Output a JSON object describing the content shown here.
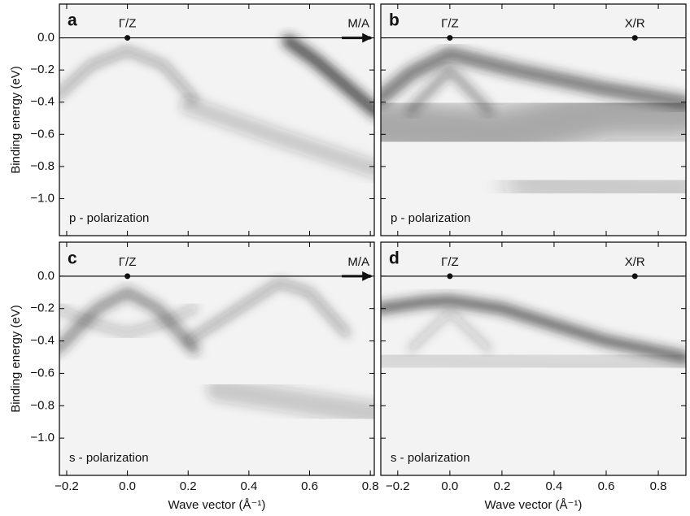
{
  "chart_data": [
    {
      "type": "heatmap",
      "panel": "a",
      "xlim": [
        -0.224,
        0.813
      ],
      "ylim": [
        -1.23,
        0.21
      ],
      "xticks": [
        -0.2,
        0,
        0.2,
        0.4,
        0.6,
        0.8
      ],
      "yticks": [
        {
          "value": 0,
          "label": "0.0"
        },
        {
          "value": -0.2,
          "label": "−0.2"
        },
        {
          "value": -0.4,
          "label": "−0.4"
        },
        {
          "value": -0.6,
          "label": "−0.6"
        },
        {
          "value": -0.8,
          "label": "−0.8"
        },
        {
          "value": -1.0,
          "label": "−1.0"
        }
      ],
      "ylabel": "Binding energy (eV)",
      "points": [
        {
          "label": "Γ/Z",
          "x": 0,
          "y": 0
        }
      ],
      "arrow_label": "M/A",
      "annotation": "p - polarization"
    },
    {
      "type": "heatmap",
      "panel": "b",
      "xlim": [
        -0.265,
        0.906
      ],
      "ylim": [
        -1.23,
        0.21
      ],
      "xticks": [
        -0.2,
        0,
        0.2,
        0.4,
        0.6,
        0.8
      ],
      "yticks": [
        0,
        -0.2,
        -0.4,
        -0.6,
        -0.8,
        -1.0
      ],
      "points": [
        {
          "label": "Γ/Z",
          "x": 0,
          "y": 0
        },
        {
          "label": "X/R",
          "x": 0.71,
          "y": 0
        }
      ],
      "annotation": "p - polarization"
    },
    {
      "type": "heatmap",
      "panel": "c",
      "xlim": [
        -0.224,
        0.813
      ],
      "ylim": [
        -1.23,
        0.21
      ],
      "xticks": [
        {
          "value": -0.2,
          "label": "−0.2"
        },
        {
          "value": 0,
          "label": "0.0"
        },
        0.2,
        0.4,
        0.6,
        0.8
      ],
      "yticks": [
        {
          "value": 0,
          "label": "0.0"
        },
        {
          "value": -0.2,
          "label": "−0.2"
        },
        {
          "value": -0.4,
          "label": "−0.4"
        },
        {
          "value": -0.6,
          "label": "−0.6"
        },
        {
          "value": -0.8,
          "label": "−0.8"
        },
        {
          "value": -1.0,
          "label": "−1.0"
        }
      ],
      "xlabel": "Wave vector (Å⁻¹)",
      "ylabel": "Binding energy (eV)",
      "points": [
        {
          "label": "Γ/Z",
          "x": 0,
          "y": 0
        }
      ],
      "arrow_label": "M/A",
      "annotation": "s - polarization"
    },
    {
      "type": "heatmap",
      "panel": "d",
      "xlim": [
        -0.265,
        0.906
      ],
      "ylim": [
        -1.23,
        0.21
      ],
      "xticks": [
        {
          "value": -0.2,
          "label": "−0.2"
        },
        {
          "value": 0,
          "label": "0.0"
        },
        0.2,
        0.4,
        0.6,
        0.8
      ],
      "yticks": [
        0,
        -0.2,
        -0.4,
        -0.6,
        -0.8,
        -1.0
      ],
      "xlabel": "Wave vector (Å⁻¹)",
      "points": [
        {
          "label": "Γ/Z",
          "x": 0,
          "y": 0
        },
        {
          "label": "X/R",
          "x": 0.71,
          "y": 0
        }
      ],
      "annotation": "s - polarization"
    }
  ]
}
